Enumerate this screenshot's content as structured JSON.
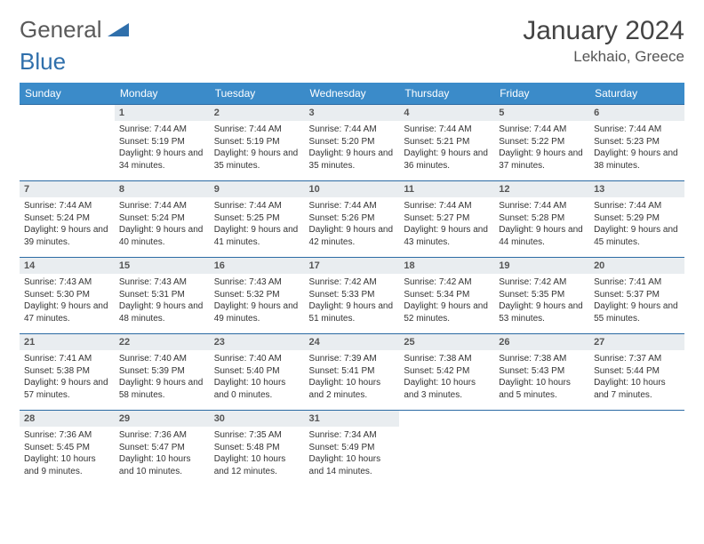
{
  "logo": {
    "text_a": "General",
    "text_b": "Blue",
    "color_a": "#6a6a6a",
    "color_b": "#2f6fab"
  },
  "title": "January 2024",
  "location": "Lekhaio, Greece",
  "colors": {
    "header_bg": "#3b8bc9",
    "header_text": "#ffffff",
    "daynum_bg": "#e9edf0",
    "row_border": "#2b6aa3",
    "body_text": "#333333"
  },
  "weekdays": [
    "Sunday",
    "Monday",
    "Tuesday",
    "Wednesday",
    "Thursday",
    "Friday",
    "Saturday"
  ],
  "weeks": [
    [
      null,
      {
        "n": "1",
        "sr": "Sunrise: 7:44 AM",
        "ss": "Sunset: 5:19 PM",
        "dl": "Daylight: 9 hours and 34 minutes."
      },
      {
        "n": "2",
        "sr": "Sunrise: 7:44 AM",
        "ss": "Sunset: 5:19 PM",
        "dl": "Daylight: 9 hours and 35 minutes."
      },
      {
        "n": "3",
        "sr": "Sunrise: 7:44 AM",
        "ss": "Sunset: 5:20 PM",
        "dl": "Daylight: 9 hours and 35 minutes."
      },
      {
        "n": "4",
        "sr": "Sunrise: 7:44 AM",
        "ss": "Sunset: 5:21 PM",
        "dl": "Daylight: 9 hours and 36 minutes."
      },
      {
        "n": "5",
        "sr": "Sunrise: 7:44 AM",
        "ss": "Sunset: 5:22 PM",
        "dl": "Daylight: 9 hours and 37 minutes."
      },
      {
        "n": "6",
        "sr": "Sunrise: 7:44 AM",
        "ss": "Sunset: 5:23 PM",
        "dl": "Daylight: 9 hours and 38 minutes."
      }
    ],
    [
      {
        "n": "7",
        "sr": "Sunrise: 7:44 AM",
        "ss": "Sunset: 5:24 PM",
        "dl": "Daylight: 9 hours and 39 minutes."
      },
      {
        "n": "8",
        "sr": "Sunrise: 7:44 AM",
        "ss": "Sunset: 5:24 PM",
        "dl": "Daylight: 9 hours and 40 minutes."
      },
      {
        "n": "9",
        "sr": "Sunrise: 7:44 AM",
        "ss": "Sunset: 5:25 PM",
        "dl": "Daylight: 9 hours and 41 minutes."
      },
      {
        "n": "10",
        "sr": "Sunrise: 7:44 AM",
        "ss": "Sunset: 5:26 PM",
        "dl": "Daylight: 9 hours and 42 minutes."
      },
      {
        "n": "11",
        "sr": "Sunrise: 7:44 AM",
        "ss": "Sunset: 5:27 PM",
        "dl": "Daylight: 9 hours and 43 minutes."
      },
      {
        "n": "12",
        "sr": "Sunrise: 7:44 AM",
        "ss": "Sunset: 5:28 PM",
        "dl": "Daylight: 9 hours and 44 minutes."
      },
      {
        "n": "13",
        "sr": "Sunrise: 7:44 AM",
        "ss": "Sunset: 5:29 PM",
        "dl": "Daylight: 9 hours and 45 minutes."
      }
    ],
    [
      {
        "n": "14",
        "sr": "Sunrise: 7:43 AM",
        "ss": "Sunset: 5:30 PM",
        "dl": "Daylight: 9 hours and 47 minutes."
      },
      {
        "n": "15",
        "sr": "Sunrise: 7:43 AM",
        "ss": "Sunset: 5:31 PM",
        "dl": "Daylight: 9 hours and 48 minutes."
      },
      {
        "n": "16",
        "sr": "Sunrise: 7:43 AM",
        "ss": "Sunset: 5:32 PM",
        "dl": "Daylight: 9 hours and 49 minutes."
      },
      {
        "n": "17",
        "sr": "Sunrise: 7:42 AM",
        "ss": "Sunset: 5:33 PM",
        "dl": "Daylight: 9 hours and 51 minutes."
      },
      {
        "n": "18",
        "sr": "Sunrise: 7:42 AM",
        "ss": "Sunset: 5:34 PM",
        "dl": "Daylight: 9 hours and 52 minutes."
      },
      {
        "n": "19",
        "sr": "Sunrise: 7:42 AM",
        "ss": "Sunset: 5:35 PM",
        "dl": "Daylight: 9 hours and 53 minutes."
      },
      {
        "n": "20",
        "sr": "Sunrise: 7:41 AM",
        "ss": "Sunset: 5:37 PM",
        "dl": "Daylight: 9 hours and 55 minutes."
      }
    ],
    [
      {
        "n": "21",
        "sr": "Sunrise: 7:41 AM",
        "ss": "Sunset: 5:38 PM",
        "dl": "Daylight: 9 hours and 57 minutes."
      },
      {
        "n": "22",
        "sr": "Sunrise: 7:40 AM",
        "ss": "Sunset: 5:39 PM",
        "dl": "Daylight: 9 hours and 58 minutes."
      },
      {
        "n": "23",
        "sr": "Sunrise: 7:40 AM",
        "ss": "Sunset: 5:40 PM",
        "dl": "Daylight: 10 hours and 0 minutes."
      },
      {
        "n": "24",
        "sr": "Sunrise: 7:39 AM",
        "ss": "Sunset: 5:41 PM",
        "dl": "Daylight: 10 hours and 2 minutes."
      },
      {
        "n": "25",
        "sr": "Sunrise: 7:38 AM",
        "ss": "Sunset: 5:42 PM",
        "dl": "Daylight: 10 hours and 3 minutes."
      },
      {
        "n": "26",
        "sr": "Sunrise: 7:38 AM",
        "ss": "Sunset: 5:43 PM",
        "dl": "Daylight: 10 hours and 5 minutes."
      },
      {
        "n": "27",
        "sr": "Sunrise: 7:37 AM",
        "ss": "Sunset: 5:44 PM",
        "dl": "Daylight: 10 hours and 7 minutes."
      }
    ],
    [
      {
        "n": "28",
        "sr": "Sunrise: 7:36 AM",
        "ss": "Sunset: 5:45 PM",
        "dl": "Daylight: 10 hours and 9 minutes."
      },
      {
        "n": "29",
        "sr": "Sunrise: 7:36 AM",
        "ss": "Sunset: 5:47 PM",
        "dl": "Daylight: 10 hours and 10 minutes."
      },
      {
        "n": "30",
        "sr": "Sunrise: 7:35 AM",
        "ss": "Sunset: 5:48 PM",
        "dl": "Daylight: 10 hours and 12 minutes."
      },
      {
        "n": "31",
        "sr": "Sunrise: 7:34 AM",
        "ss": "Sunset: 5:49 PM",
        "dl": "Daylight: 10 hours and 14 minutes."
      },
      null,
      null,
      null
    ]
  ]
}
